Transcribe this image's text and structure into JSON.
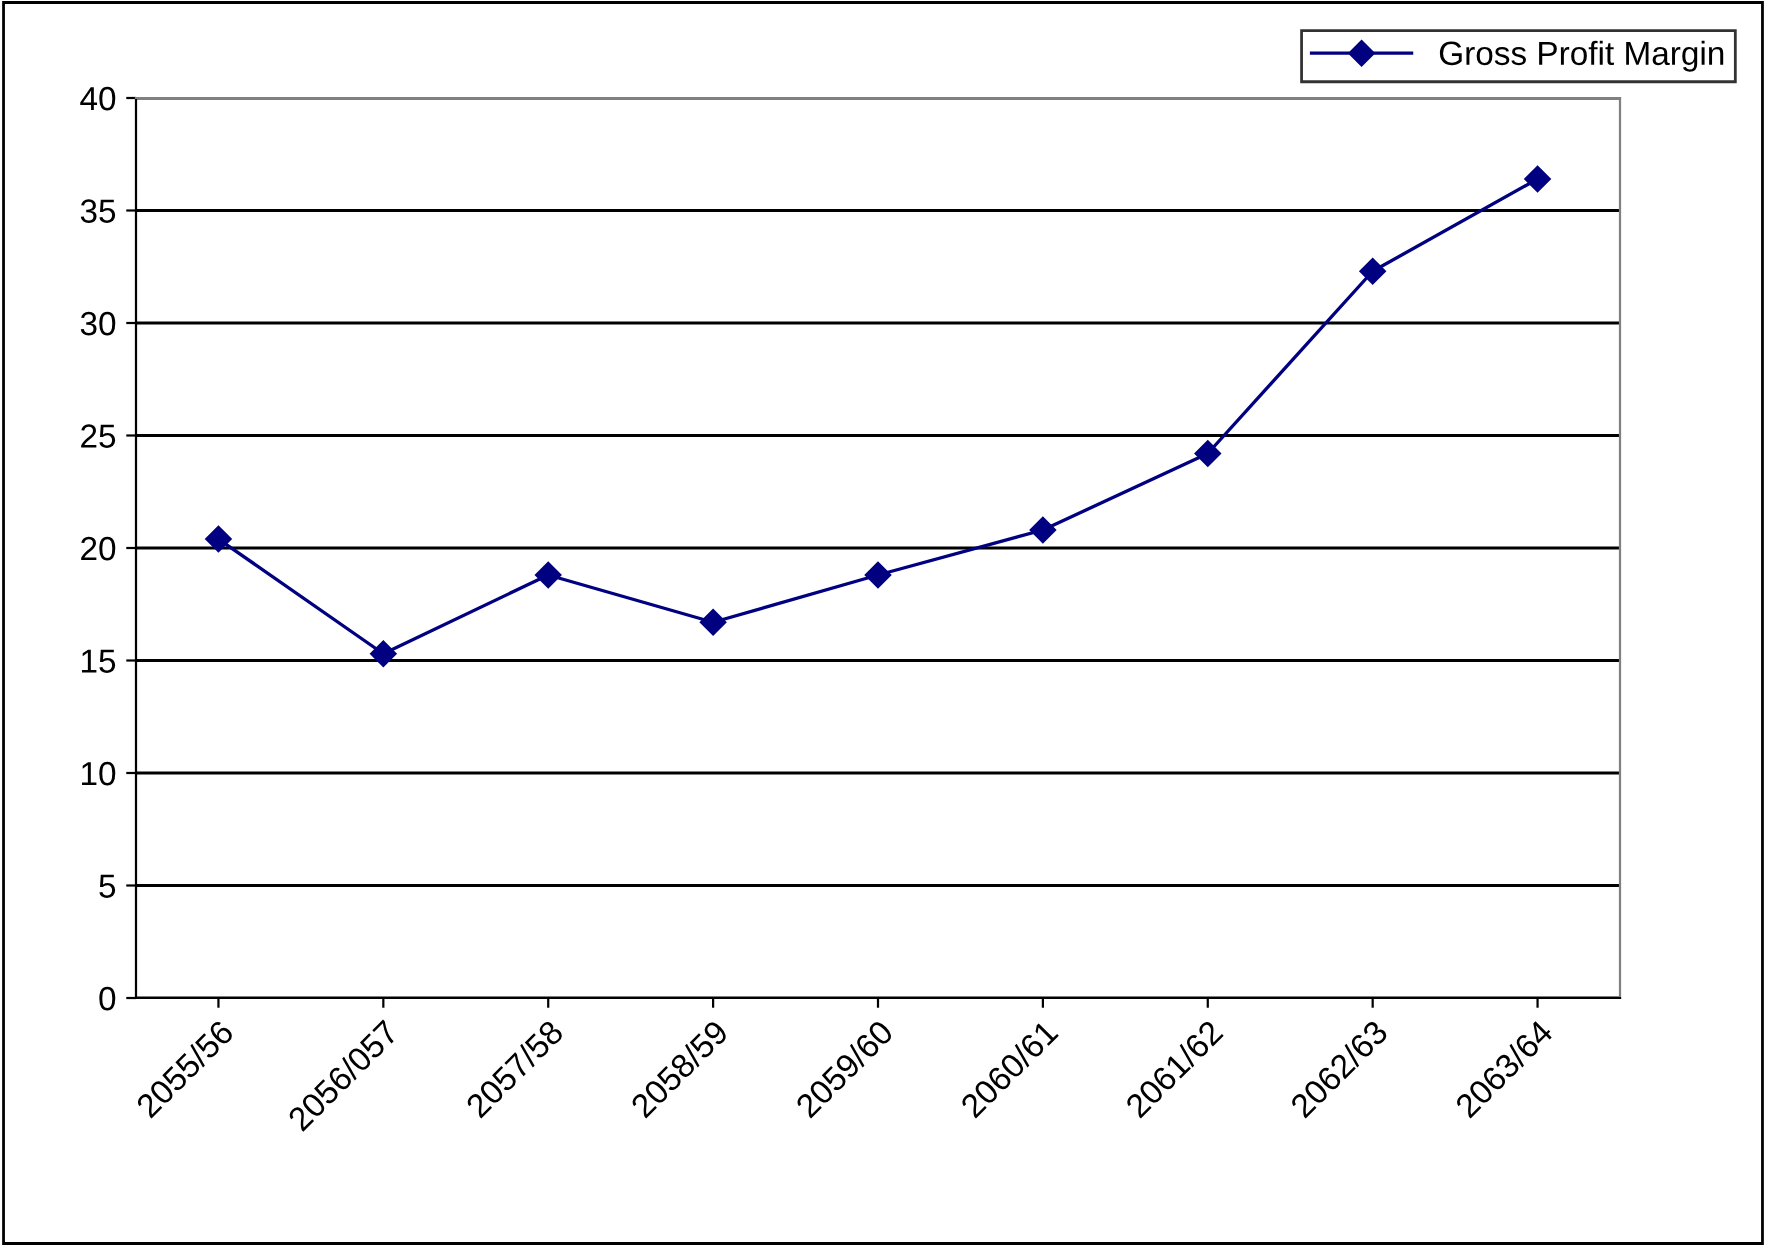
{
  "chart_data": {
    "type": "line",
    "categories": [
      "2055/56",
      "2056/057",
      "2057/58",
      "2058/59",
      "2059/60",
      "2060/61",
      "2061/62",
      "2062/63",
      "2063/64"
    ],
    "series": [
      {
        "name": "Gross Profit Margin",
        "color": "#000080",
        "values": [
          20.4,
          15.3,
          18.8,
          16.7,
          18.8,
          20.8,
          24.2,
          32.3,
          36.4
        ]
      }
    ],
    "ylim": [
      0,
      40
    ],
    "yticks": [
      0,
      5,
      10,
      15,
      20,
      25,
      30,
      35,
      40
    ],
    "grid": "y",
    "legend": "top right",
    "marker": "diamond",
    "line_style": "solid"
  }
}
